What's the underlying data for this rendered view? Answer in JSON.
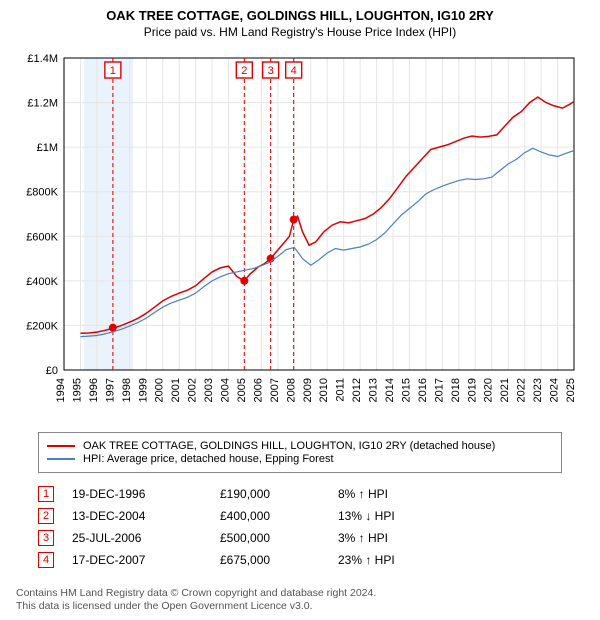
{
  "chart": {
    "title": "OAK TREE COTTAGE, GOLDINGS HILL, LOUGHTON, IG10 2RY",
    "subtitle": "Price paid vs. HM Land Registry's House Price Index (HPI)",
    "type": "line",
    "background_color": "#ffffff",
    "grid_color": "#e6e6e6",
    "axis_color": "#000000",
    "axis_font_size": 11,
    "highlight_band": {
      "from": 1995.2,
      "to": 1998.2,
      "color": "#eaf2fb"
    },
    "x": {
      "min": 1994,
      "max": 2025,
      "tick_step": 1,
      "rotate": -90
    },
    "y": {
      "min": 0,
      "max": 1400000,
      "tick_step": 200000,
      "tick_labels": [
        "£0",
        "£200K",
        "£400K",
        "£600K",
        "£800K",
        "£1M",
        "£1.2M",
        "£1.4M"
      ]
    },
    "series": [
      {
        "name": "property",
        "label": "OAK TREE COTTAGE, GOLDINGS HILL, LOUGHTON, IG10 2RY (detached house)",
        "color": "#e00000",
        "line_width": 1.5,
        "data": [
          [
            1995.0,
            165000
          ],
          [
            1995.5,
            166000
          ],
          [
            1996.0,
            170000
          ],
          [
            1996.5,
            178000
          ],
          [
            1997.0,
            188000
          ],
          [
            1997.5,
            200000
          ],
          [
            1998.0,
            215000
          ],
          [
            1998.5,
            232000
          ],
          [
            1999.0,
            255000
          ],
          [
            1999.5,
            282000
          ],
          [
            2000.0,
            310000
          ],
          [
            2000.5,
            330000
          ],
          [
            2001.0,
            345000
          ],
          [
            2001.5,
            358000
          ],
          [
            2002.0,
            378000
          ],
          [
            2002.5,
            410000
          ],
          [
            2003.0,
            440000
          ],
          [
            2003.5,
            458000
          ],
          [
            2004.0,
            466000
          ],
          [
            2004.5,
            420000
          ],
          [
            2004.96,
            400000
          ],
          [
            2005.3,
            430000
          ],
          [
            2005.8,
            462000
          ],
          [
            2006.2,
            478000
          ],
          [
            2006.56,
            500000
          ],
          [
            2006.9,
            530000
          ],
          [
            2007.3,
            565000
          ],
          [
            2007.7,
            600000
          ],
          [
            2007.96,
            675000
          ],
          [
            2008.2,
            690000
          ],
          [
            2008.5,
            620000
          ],
          [
            2008.9,
            560000
          ],
          [
            2009.3,
            575000
          ],
          [
            2009.8,
            620000
          ],
          [
            2010.3,
            650000
          ],
          [
            2010.8,
            665000
          ],
          [
            2011.3,
            660000
          ],
          [
            2011.8,
            670000
          ],
          [
            2012.3,
            680000
          ],
          [
            2012.8,
            700000
          ],
          [
            2013.3,
            730000
          ],
          [
            2013.8,
            770000
          ],
          [
            2014.3,
            820000
          ],
          [
            2014.8,
            870000
          ],
          [
            2015.3,
            910000
          ],
          [
            2015.8,
            950000
          ],
          [
            2016.3,
            990000
          ],
          [
            2016.8,
            1000000
          ],
          [
            2017.3,
            1010000
          ],
          [
            2017.8,
            1025000
          ],
          [
            2018.3,
            1040000
          ],
          [
            2018.8,
            1050000
          ],
          [
            2019.3,
            1045000
          ],
          [
            2019.8,
            1048000
          ],
          [
            2020.3,
            1055000
          ],
          [
            2020.8,
            1095000
          ],
          [
            2021.3,
            1135000
          ],
          [
            2021.8,
            1160000
          ],
          [
            2022.3,
            1200000
          ],
          [
            2022.8,
            1225000
          ],
          [
            2023.3,
            1200000
          ],
          [
            2023.8,
            1185000
          ],
          [
            2024.3,
            1175000
          ],
          [
            2024.8,
            1195000
          ],
          [
            2025.0,
            1205000
          ]
        ]
      },
      {
        "name": "hpi",
        "label": "HPI: Average price, detached house, Epping Forest",
        "color": "#4a7fc5",
        "line_width": 1.2,
        "data": [
          [
            1995.0,
            150000
          ],
          [
            1995.5,
            152000
          ],
          [
            1996.0,
            155000
          ],
          [
            1996.5,
            162000
          ],
          [
            1997.0,
            172000
          ],
          [
            1997.5,
            183000
          ],
          [
            1998.0,
            198000
          ],
          [
            1998.5,
            213000
          ],
          [
            1999.0,
            233000
          ],
          [
            1999.5,
            258000
          ],
          [
            2000.0,
            282000
          ],
          [
            2000.5,
            300000
          ],
          [
            2001.0,
            313000
          ],
          [
            2001.5,
            326000
          ],
          [
            2002.0,
            345000
          ],
          [
            2002.5,
            374000
          ],
          [
            2003.0,
            400000
          ],
          [
            2003.5,
            418000
          ],
          [
            2004.0,
            432000
          ],
          [
            2004.5,
            440000
          ],
          [
            2005.0,
            448000
          ],
          [
            2005.5,
            455000
          ],
          [
            2006.0,
            468000
          ],
          [
            2006.5,
            483000
          ],
          [
            2007.0,
            510000
          ],
          [
            2007.5,
            540000
          ],
          [
            2008.0,
            550000
          ],
          [
            2008.5,
            500000
          ],
          [
            2009.0,
            470000
          ],
          [
            2009.5,
            495000
          ],
          [
            2010.0,
            525000
          ],
          [
            2010.5,
            545000
          ],
          [
            2011.0,
            538000
          ],
          [
            2011.5,
            545000
          ],
          [
            2012.0,
            552000
          ],
          [
            2012.5,
            565000
          ],
          [
            2013.0,
            585000
          ],
          [
            2013.5,
            615000
          ],
          [
            2014.0,
            655000
          ],
          [
            2014.5,
            695000
          ],
          [
            2015.0,
            725000
          ],
          [
            2015.5,
            755000
          ],
          [
            2016.0,
            790000
          ],
          [
            2016.5,
            810000
          ],
          [
            2017.0,
            825000
          ],
          [
            2017.5,
            838000
          ],
          [
            2018.0,
            850000
          ],
          [
            2018.5,
            858000
          ],
          [
            2019.0,
            855000
          ],
          [
            2019.5,
            858000
          ],
          [
            2020.0,
            865000
          ],
          [
            2020.5,
            895000
          ],
          [
            2021.0,
            925000
          ],
          [
            2021.5,
            945000
          ],
          [
            2022.0,
            975000
          ],
          [
            2022.5,
            995000
          ],
          [
            2023.0,
            978000
          ],
          [
            2023.5,
            965000
          ],
          [
            2024.0,
            958000
          ],
          [
            2024.5,
            972000
          ],
          [
            2025.0,
            985000
          ]
        ]
      }
    ],
    "markers": [
      {
        "n": "1",
        "x": 1996.97,
        "y": 190000
      },
      {
        "n": "2",
        "x": 2004.96,
        "y": 400000
      },
      {
        "n": "3",
        "x": 2006.56,
        "y": 500000
      },
      {
        "n": "4",
        "x": 2007.96,
        "y": 675000
      }
    ],
    "marker_color": "#e00000",
    "marker_dash": "4,3"
  },
  "legend": {
    "items": [
      {
        "color": "#e00000",
        "text": "OAK TREE COTTAGE, GOLDINGS HILL, LOUGHTON, IG10 2RY (detached house)"
      },
      {
        "color": "#4a7fc5",
        "text": "HPI: Average price, detached house, Epping Forest"
      }
    ]
  },
  "sales": [
    {
      "n": "1",
      "date": "19-DEC-1996",
      "price": "£190,000",
      "delta": "8% ↑ HPI"
    },
    {
      "n": "2",
      "date": "13-DEC-2004",
      "price": "£400,000",
      "delta": "13% ↓ HPI"
    },
    {
      "n": "3",
      "date": "25-JUL-2006",
      "price": "£500,000",
      "delta": "3% ↑ HPI"
    },
    {
      "n": "4",
      "date": "17-DEC-2007",
      "price": "£675,000",
      "delta": "23% ↑ HPI"
    }
  ],
  "footer": {
    "line1": "Contains HM Land Registry data © Crown copyright and database right 2024.",
    "line2": "This data is licensed under the Open Government Licence v3.0."
  }
}
